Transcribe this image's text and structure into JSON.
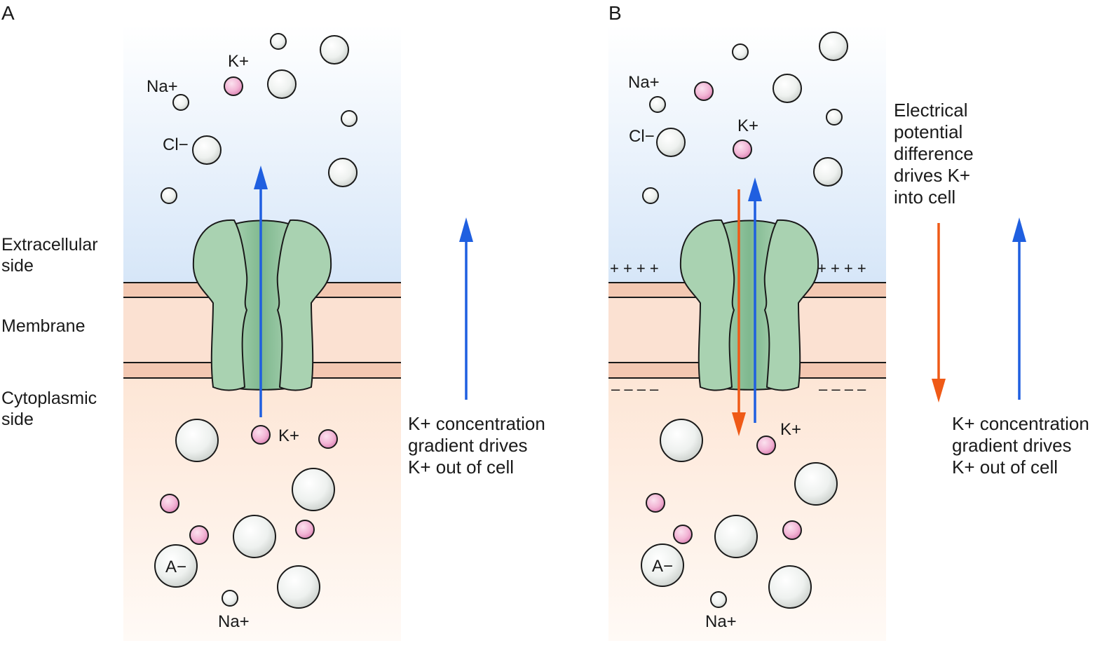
{
  "panels": [
    {
      "letter": "A",
      "ion_labels": {
        "k_out": "K+",
        "na_out": "Na+",
        "cl_out": "Cl−",
        "k_in": "K+",
        "a_in": "A−",
        "na_in": "Na+"
      },
      "notes": {
        "concentration": [
          "K+ concentration",
          "gradient drives",
          "K+ out of cell"
        ]
      }
    },
    {
      "letter": "B",
      "ion_labels": {
        "k_out": "K+",
        "na_out": "Na+",
        "cl_out": "Cl−",
        "k_in": "K+",
        "a_in": "A−",
        "na_in": "Na+"
      },
      "charges": {
        "outer": "+ + + +",
        "inner": "– – – –"
      },
      "notes": {
        "electrical": [
          "Electrical",
          "potential",
          "difference",
          "drives K+",
          "into cell"
        ],
        "concentration": [
          "K+ concentration",
          "gradient drives",
          "K+ out of cell"
        ]
      }
    }
  ],
  "side_labels": {
    "extracellular": [
      "Extracellular",
      "side"
    ],
    "membrane": "Membrane",
    "cytoplasmic": [
      "Cytoplasmic",
      "side"
    ]
  },
  "colors": {
    "extracellular_top": "#ffffff",
    "extracellular_bottom": "#d6e6f8",
    "membrane": "#f3c8b2",
    "cytoplasm_top": "#fde6d6",
    "cytoplasm_bottom": "#fffaf6",
    "channel": "#a9d2b1",
    "channel_pore": "#86be95",
    "k_ion": "#f2b3d4",
    "neutral_ion": "#eef1ef",
    "concentration_arrow": "#1f5fe0",
    "electrical_arrow": "#ef5a17"
  }
}
